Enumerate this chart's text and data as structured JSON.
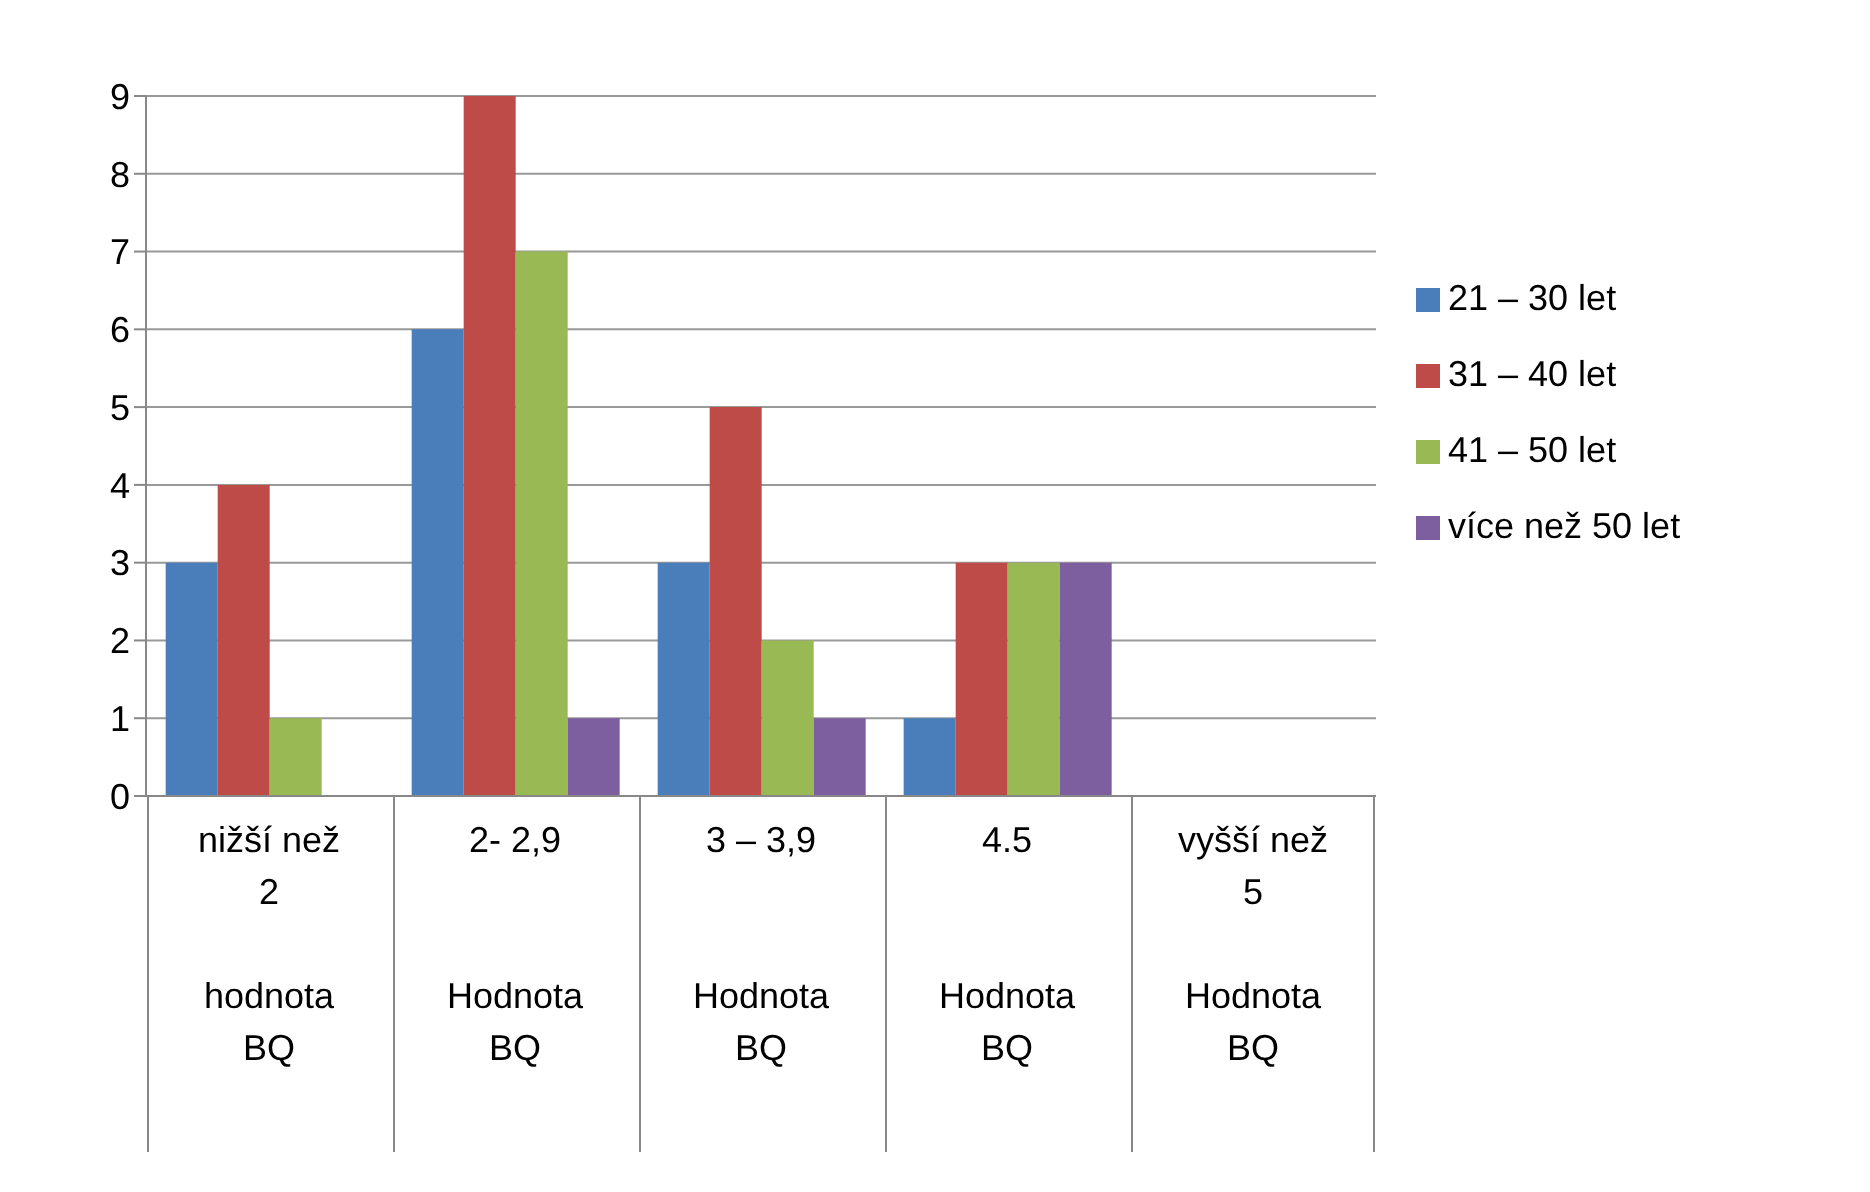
{
  "chart_data": {
    "type": "bar",
    "categories": [
      "nižší než\n2\n\nhodnota\nBQ",
      "2- 2,9\n\n\nHodnota\nBQ",
      "3 – 3,9\n\n\nHodnota\nBQ",
      "4.5\n\n\nHodnota\nBQ",
      "vyšší než\n5\n\nHodnota\nBQ"
    ],
    "series": [
      {
        "name": "21 – 30 let",
        "color": "#4a7ebb",
        "values": [
          3,
          6,
          3,
          1,
          0
        ]
      },
      {
        "name": "31 – 40 let",
        "color": "#be4b48",
        "values": [
          4,
          9,
          5,
          3,
          0
        ]
      },
      {
        "name": "41 – 50 let",
        "color": "#98b954",
        "values": [
          1,
          7,
          2,
          3,
          0
        ]
      },
      {
        "name": "více než 50 let",
        "color": "#7d5fa0",
        "values": [
          0,
          1,
          1,
          3,
          0
        ]
      }
    ],
    "ylim": [
      0,
      9
    ],
    "yticks": [
      0,
      1,
      2,
      3,
      4,
      5,
      6,
      7,
      8,
      9
    ],
    "grid": "y",
    "legend": "right"
  }
}
